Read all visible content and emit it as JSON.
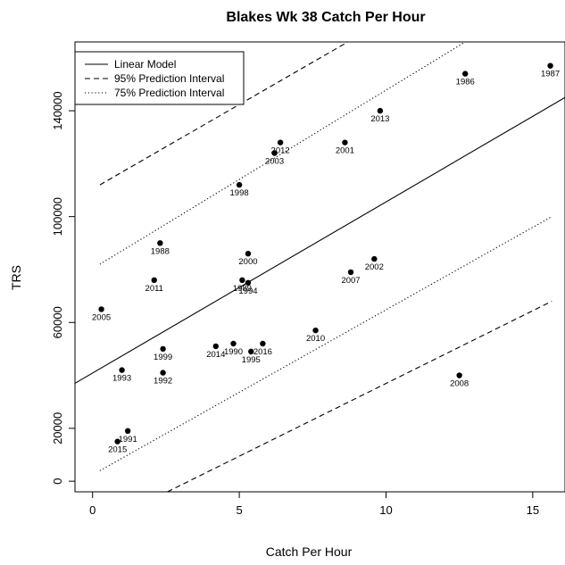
{
  "chart_data": {
    "type": "scatter",
    "title": "Blakes Wk 38 Catch Per Hour",
    "xlabel": "Catch Per Hour",
    "ylabel": "TRS",
    "xlim": [
      -0.6,
      16.1
    ],
    "ylim": [
      -4000,
      166000
    ],
    "x_ticks": [
      0,
      5,
      10,
      15
    ],
    "y_ticks": [
      0,
      20000,
      60000,
      100000,
      140000
    ],
    "grid": false,
    "legend_position": "top-left",
    "points": [
      {
        "label": "1987",
        "x": 15.6,
        "y": 157000
      },
      {
        "label": "1986",
        "x": 12.7,
        "y": 154000
      },
      {
        "label": "2013",
        "x": 9.8,
        "y": 140000
      },
      {
        "label": "2012",
        "x": 6.4,
        "y": 128000
      },
      {
        "label": "2003",
        "x": 6.2,
        "y": 124000
      },
      {
        "label": "2001",
        "x": 8.6,
        "y": 128000
      },
      {
        "label": "1998",
        "x": 5.0,
        "y": 112000
      },
      {
        "label": "1988",
        "x": 2.3,
        "y": 90000
      },
      {
        "label": "2000",
        "x": 5.3,
        "y": 86000
      },
      {
        "label": "2002",
        "x": 9.6,
        "y": 84000
      },
      {
        "label": "2007",
        "x": 8.8,
        "y": 79000
      },
      {
        "label": "2011",
        "x": 2.1,
        "y": 76000
      },
      {
        "label": "1989",
        "x": 5.1,
        "y": 76000
      },
      {
        "label": "1994",
        "x": 5.3,
        "y": 75000
      },
      {
        "label": "2005",
        "x": 0.3,
        "y": 65000
      },
      {
        "label": "2010",
        "x": 7.6,
        "y": 57000
      },
      {
        "label": "2016",
        "x": 5.8,
        "y": 52000
      },
      {
        "label": "1990",
        "x": 4.8,
        "y": 52000
      },
      {
        "label": "2014",
        "x": 4.2,
        "y": 51000
      },
      {
        "label": "1995",
        "x": 5.4,
        "y": 49000
      },
      {
        "label": "1999",
        "x": 2.4,
        "y": 50000
      },
      {
        "label": "1993",
        "x": 1.0,
        "y": 42000
      },
      {
        "label": "1992",
        "x": 2.4,
        "y": 41000
      },
      {
        "label": "2008",
        "x": 12.5,
        "y": 40000
      },
      {
        "label": "1991",
        "x": 1.2,
        "y": 19000
      },
      {
        "label": "2015",
        "x": 0.85,
        "y": 15000
      }
    ],
    "series": [
      {
        "name": "Linear Model",
        "style": "solid",
        "x": [
          -0.6,
          16.1
        ],
        "y": [
          37000,
          145000
        ]
      },
      {
        "name": "95% Prediction Interval",
        "style": "dashed",
        "x": [
          0.25,
          8.7
        ],
        "y": [
          112000,
          166000
        ]
      },
      {
        "name": "95% Prediction Interval",
        "style": "dashed",
        "x": [
          2.55,
          15.65
        ],
        "y": [
          -4000,
          68000
        ]
      },
      {
        "name": "75% Prediction Interval",
        "style": "dotted",
        "x": [
          0.25,
          12.7
        ],
        "y": [
          82000,
          166000
        ]
      },
      {
        "name": "75% Prediction Interval",
        "style": "dotted",
        "x": [
          0.25,
          15.65
        ],
        "y": [
          4000,
          100000
        ]
      }
    ],
    "legend": [
      {
        "name": "Linear Model",
        "style": "solid"
      },
      {
        "name": "95% Prediction Interval",
        "style": "dashed"
      },
      {
        "name": "75% Prediction Interval",
        "style": "dotted"
      }
    ]
  }
}
